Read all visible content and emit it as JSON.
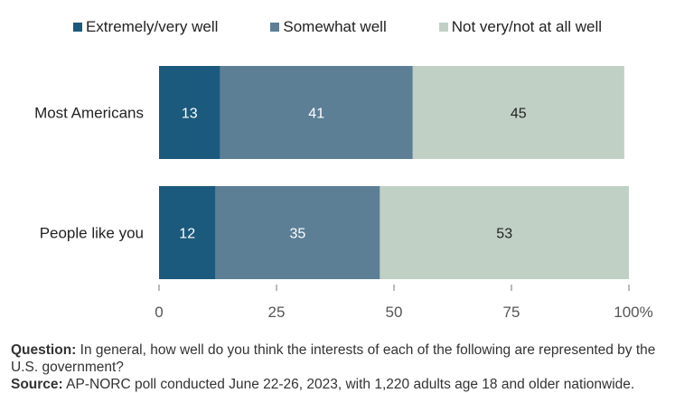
{
  "chart_data": {
    "type": "bar",
    "orientation": "horizontal",
    "stacked": true,
    "categories": [
      "Most Americans",
      "People like you"
    ],
    "series": [
      {
        "name": "Extremely/very well",
        "values": [
          13,
          12
        ],
        "color": "#1b5a7c"
      },
      {
        "name": "Somewhat well",
        "values": [
          41,
          35
        ],
        "color": "#5c7f96"
      },
      {
        "name": "Not very/not at all well",
        "values": [
          45,
          53
        ],
        "color": "#c0d0c5"
      }
    ],
    "xlim": [
      0,
      100
    ],
    "xticks": [
      "0",
      "25",
      "50",
      "75",
      "100%"
    ],
    "grid": false,
    "legend_position": "top"
  },
  "footnote": {
    "question_label": "Question:",
    "question_text": "In general, how well do you think the interests of each of the following are represented by the U.S. government?",
    "source_label": "Source:",
    "source_text": "AP-NORC poll conducted June 22-26, 2023, with 1,220 adults age 18 and older nationwide."
  }
}
